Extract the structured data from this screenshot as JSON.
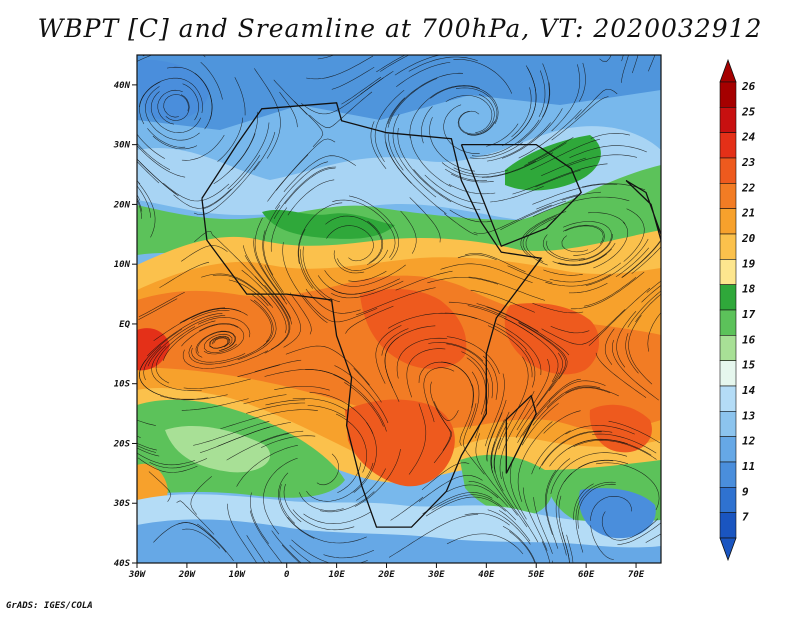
{
  "title": "WBPT [C] and Sreamline at 700hPa, VT: 2020032912",
  "credit": "GrADS: IGES/COLA",
  "map": {
    "lat_range": [
      -40,
      45
    ],
    "lon_range": [
      -30,
      75
    ],
    "lat_ticks": [
      {
        "value": 40,
        "label": "40N"
      },
      {
        "value": 30,
        "label": "30N"
      },
      {
        "value": 20,
        "label": "20N"
      },
      {
        "value": 10,
        "label": "10N"
      },
      {
        "value": 0,
        "label": "EQ"
      },
      {
        "value": -10,
        "label": "10S"
      },
      {
        "value": -20,
        "label": "20S"
      },
      {
        "value": -30,
        "label": "30S"
      },
      {
        "value": -40,
        "label": "40S"
      }
    ],
    "lon_ticks": [
      {
        "value": -30,
        "label": "30W"
      },
      {
        "value": -20,
        "label": "20W"
      },
      {
        "value": -10,
        "label": "10W"
      },
      {
        "value": 0,
        "label": "0"
      },
      {
        "value": 10,
        "label": "10E"
      },
      {
        "value": 20,
        "label": "20E"
      },
      {
        "value": 30,
        "label": "30E"
      },
      {
        "value": 40,
        "label": "40E"
      },
      {
        "value": 50,
        "label": "50E"
      },
      {
        "value": 60,
        "label": "60E"
      },
      {
        "value": 70,
        "label": "70E"
      }
    ]
  },
  "colorbar": {
    "labels": [
      "26",
      "25",
      "24",
      "23",
      "22",
      "21",
      "20",
      "19",
      "18",
      "17",
      "16",
      "15",
      "14",
      "13",
      "12",
      "11",
      "9",
      "7"
    ],
    "colors": [
      "#a50000",
      "#c81010",
      "#e43018",
      "#ee5a1e",
      "#f27c24",
      "#f7a12c",
      "#fbc14c",
      "#fde68e",
      "#2fa83a",
      "#5cc25a",
      "#a8e096",
      "#e6f7ee",
      "#b4dcf6",
      "#8cc4ee",
      "#66a8e6",
      "#4a8edc",
      "#2f72d0",
      "#1a55c0"
    ]
  }
}
